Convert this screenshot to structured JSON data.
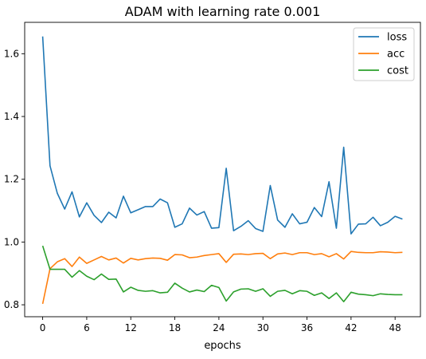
{
  "chart_data": {
    "type": "line",
    "title": "ADAM with learning rate 0.001",
    "xlabel": "epochs",
    "ylabel": "",
    "xlim": [
      -2.45,
      51.45
    ],
    "ylim": [
      0.762,
      1.7
    ],
    "xticks": [
      0,
      6,
      12,
      18,
      24,
      30,
      36,
      42,
      48
    ],
    "yticks": [
      0.8,
      1.0,
      1.2,
      1.4,
      1.6
    ],
    "ytick_labels": [
      "0.8",
      "1.0",
      "1.2",
      "1.4",
      "1.6"
    ],
    "grid": false,
    "legend_position": "top-right",
    "x": [
      0,
      1,
      2,
      3,
      4,
      5,
      6,
      7,
      8,
      9,
      10,
      11,
      12,
      13,
      14,
      15,
      16,
      17,
      18,
      19,
      20,
      21,
      22,
      23,
      24,
      25,
      26,
      27,
      28,
      29,
      30,
      31,
      32,
      33,
      34,
      35,
      36,
      37,
      38,
      39,
      40,
      41,
      42,
      43,
      44,
      45,
      46,
      47,
      48,
      49
    ],
    "series": [
      {
        "name": "loss",
        "color": "#1f77b4",
        "values": [
          1.655,
          1.243,
          1.155,
          1.105,
          1.16,
          1.08,
          1.125,
          1.085,
          1.062,
          1.095,
          1.077,
          1.146,
          1.093,
          1.103,
          1.113,
          1.113,
          1.137,
          1.125,
          1.047,
          1.058,
          1.108,
          1.086,
          1.097,
          1.044,
          1.046,
          1.235,
          1.036,
          1.05,
          1.068,
          1.043,
          1.034,
          1.18,
          1.07,
          1.047,
          1.09,
          1.058,
          1.063,
          1.11,
          1.081,
          1.192,
          1.044,
          1.302,
          1.026,
          1.057,
          1.058,
          1.079,
          1.052,
          1.063,
          1.082,
          1.073
        ]
      },
      {
        "name": "acc",
        "color": "#ff7f0e",
        "values": [
          0.803,
          0.915,
          0.937,
          0.947,
          0.922,
          0.952,
          0.932,
          0.943,
          0.954,
          0.943,
          0.949,
          0.933,
          0.948,
          0.943,
          0.947,
          0.949,
          0.948,
          0.942,
          0.96,
          0.959,
          0.95,
          0.952,
          0.957,
          0.96,
          0.963,
          0.935,
          0.961,
          0.962,
          0.96,
          0.963,
          0.964,
          0.947,
          0.962,
          0.965,
          0.96,
          0.966,
          0.966,
          0.96,
          0.963,
          0.953,
          0.963,
          0.946,
          0.97,
          0.967,
          0.966,
          0.966,
          0.969,
          0.968,
          0.966,
          0.967
        ]
      },
      {
        "name": "cost",
        "color": "#2ca02c",
        "values": [
          0.988,
          0.913,
          0.913,
          0.913,
          0.888,
          0.909,
          0.891,
          0.88,
          0.898,
          0.881,
          0.882,
          0.841,
          0.856,
          0.846,
          0.843,
          0.845,
          0.838,
          0.84,
          0.869,
          0.853,
          0.841,
          0.847,
          0.842,
          0.862,
          0.855,
          0.812,
          0.841,
          0.85,
          0.851,
          0.843,
          0.851,
          0.827,
          0.843,
          0.846,
          0.835,
          0.845,
          0.843,
          0.83,
          0.838,
          0.82,
          0.838,
          0.81,
          0.84,
          0.834,
          0.832,
          0.829,
          0.835,
          0.833,
          0.832,
          0.832
        ]
      }
    ]
  }
}
